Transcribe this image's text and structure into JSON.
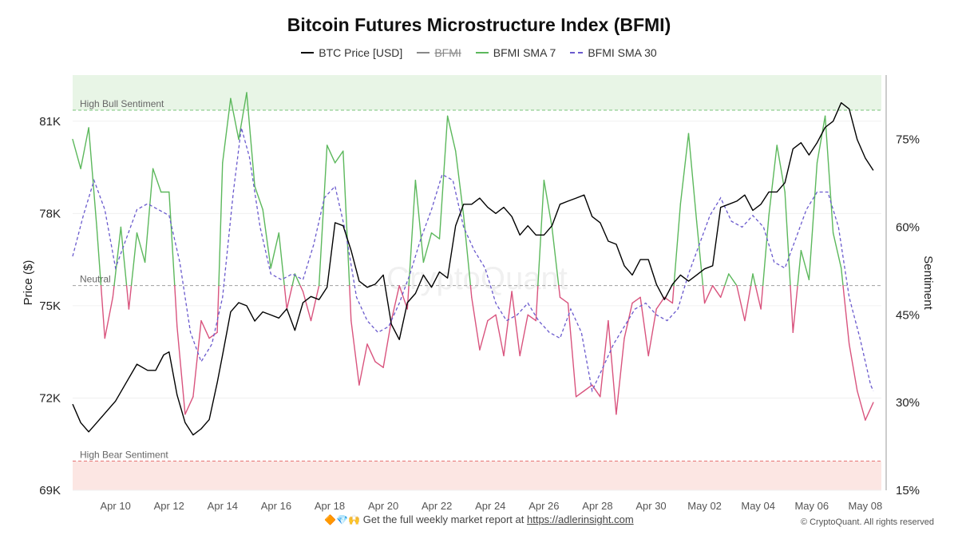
{
  "page": {
    "footer_emojis": "🔶💎🙌",
    "footer_text": "Get the full weekly market report at",
    "footer_link": "https://adlerinsight.com",
    "copyright": "© CryptoQuant. All rights reserved",
    "watermark": "CryptoQuant"
  },
  "chart_data": {
    "type": "line",
    "title": "Bitcoin Futures Microstructure Index (BFMI)",
    "ylabel_left": "Price ($)",
    "ylabel_right": "Sentiment",
    "legend": [
      {
        "name": "BTC Price [USD]",
        "style": "solid",
        "color": "#000000",
        "visible": true
      },
      {
        "name": "BFMI",
        "style": "solid",
        "color": "#888888",
        "visible": false
      },
      {
        "name": "BFMI SMA 7",
        "style": "solid",
        "color": "#5cb85c",
        "visible": true
      },
      {
        "name": "BFMI SMA 30",
        "style": "dashed",
        "color": "#6a5acd",
        "visible": true
      }
    ],
    "x_ticks": [
      "Apr 10",
      "Apr 12",
      "Apr 14",
      "Apr 16",
      "Apr 18",
      "Apr 20",
      "Apr 22",
      "Apr 24",
      "Apr 26",
      "Apr 28",
      "Apr 30",
      "May 02",
      "May 04",
      "May 06",
      "May 08"
    ],
    "x_range_days": [
      8.4,
      38.6
    ],
    "y_left_ticks": [
      "69K",
      "72K",
      "75K",
      "78K",
      "81K"
    ],
    "y_left_range": [
      69000,
      82500
    ],
    "y_right_ticks": [
      "15%",
      "30%",
      "45%",
      "60%",
      "75%"
    ],
    "y_right_range": [
      15,
      86
    ],
    "thresholds": [
      {
        "label": "High Bull Sentiment",
        "value": 80,
        "color": "#5cb85c"
      },
      {
        "label": "Neutral",
        "value": 50,
        "color": "#888888"
      },
      {
        "label": "High Bear Sentiment",
        "value": 20,
        "color": "#e05050"
      }
    ],
    "sma7_colors": {
      "above_neutral": "#5cb85c",
      "below_neutral": "#d9547e"
    },
    "series": [
      {
        "name": "BTC Price [USD]",
        "x": [
          8.4,
          8.7,
          9.0,
          9.3,
          9.6,
          10.0,
          10.4,
          10.8,
          11.2,
          11.5,
          11.8,
          12.0,
          12.3,
          12.6,
          12.9,
          13.2,
          13.5,
          13.8,
          14.0,
          14.3,
          14.6,
          14.9,
          15.2,
          15.5,
          15.8,
          16.1,
          16.4,
          16.7,
          17.0,
          17.3,
          17.6,
          17.9,
          18.2,
          18.5,
          18.8,
          19.1,
          19.4,
          19.7,
          20.0,
          20.3,
          20.6,
          20.9,
          21.2,
          21.5,
          21.8,
          22.1,
          22.4,
          22.7,
          23.0,
          23.3,
          23.6,
          23.9,
          24.2,
          24.5,
          24.8,
          25.1,
          25.4,
          25.7,
          26.0,
          26.3,
          26.6,
          26.9,
          27.2,
          27.5,
          27.8,
          28.1,
          28.4,
          28.7,
          29.0,
          29.3,
          29.6,
          29.9,
          30.2,
          30.5,
          30.8,
          31.1,
          31.4,
          31.7,
          32.0,
          32.3,
          32.6,
          32.9,
          33.2,
          33.5,
          33.8,
          34.1,
          34.4,
          34.7,
          35.0,
          35.3,
          35.6,
          35.9,
          36.2,
          36.5,
          36.8,
          37.1,
          37.4,
          37.7,
          38.0,
          38.3
        ],
        "values": [
          71800,
          71200,
          70900,
          71200,
          71500,
          71900,
          72500,
          73100,
          72900,
          72900,
          73400,
          73500,
          72100,
          71200,
          70800,
          71000,
          71300,
          72500,
          73400,
          74800,
          75100,
          75000,
          74500,
          74800,
          74700,
          74600,
          74900,
          74200,
          75100,
          75300,
          75200,
          75600,
          77700,
          77600,
          76800,
          75800,
          75600,
          75700,
          76000,
          74400,
          73900,
          75100,
          75400,
          76000,
          75600,
          76100,
          75900,
          77600,
          78300,
          78300,
          78500,
          78200,
          78000,
          78200,
          77900,
          77300,
          77600,
          77300,
          77300,
          77600,
          78300,
          78400,
          78500,
          78600,
          77900,
          77700,
          77100,
          77000,
          76300,
          76000,
          76500,
          76500,
          75700,
          75200,
          75700,
          76000,
          75800,
          76000,
          76200,
          76300,
          78200,
          78300,
          78400,
          78600,
          78100,
          78300,
          78700,
          78700,
          79000,
          80100,
          80300,
          79900,
          80300,
          80800,
          81000,
          81600,
          81400,
          80400,
          79800,
          79400
        ]
      },
      {
        "name": "BFMI SMA 7",
        "x": [
          8.4,
          8.7,
          9.0,
          9.3,
          9.6,
          9.9,
          10.2,
          10.5,
          10.8,
          11.1,
          11.4,
          11.7,
          12.0,
          12.3,
          12.6,
          12.9,
          13.2,
          13.5,
          13.8,
          14.0,
          14.3,
          14.6,
          14.9,
          15.2,
          15.5,
          15.8,
          16.1,
          16.4,
          16.7,
          17.0,
          17.3,
          17.6,
          17.9,
          18.2,
          18.5,
          18.8,
          19.1,
          19.4,
          19.7,
          20.0,
          20.3,
          20.6,
          20.9,
          21.2,
          21.5,
          21.8,
          22.1,
          22.4,
          22.7,
          23.0,
          23.3,
          23.6,
          23.9,
          24.2,
          24.5,
          24.8,
          25.1,
          25.4,
          25.7,
          26.0,
          26.3,
          26.6,
          26.9,
          27.2,
          27.5,
          27.8,
          28.1,
          28.4,
          28.7,
          29.0,
          29.3,
          29.6,
          29.9,
          30.2,
          30.5,
          30.8,
          31.1,
          31.4,
          31.7,
          32.0,
          32.3,
          32.6,
          32.9,
          33.2,
          33.5,
          33.8,
          34.1,
          34.4,
          34.7,
          35.0,
          35.3,
          35.6,
          35.9,
          36.2,
          36.5,
          36.8,
          37.1,
          37.4,
          37.7,
          38.0,
          38.3
        ],
        "values": [
          75,
          70,
          77,
          60,
          41,
          48,
          60,
          46,
          59,
          54,
          70,
          66,
          66,
          43,
          28,
          31,
          44,
          41,
          42,
          71,
          82,
          75,
          83,
          67,
          63,
          53,
          59,
          46,
          52,
          49,
          44,
          50,
          74,
          71,
          73,
          44,
          33,
          40,
          37,
          36,
          44,
          50,
          46,
          68,
          54,
          59,
          58,
          79,
          73,
          62,
          48,
          39,
          44,
          45,
          38,
          49,
          38,
          45,
          44,
          68,
          60,
          48,
          47,
          31,
          32,
          33,
          31,
          44,
          28,
          41,
          47,
          48,
          38,
          46,
          48,
          47,
          64,
          76,
          61,
          47,
          50,
          48,
          52,
          50,
          44,
          52,
          46,
          62,
          74,
          66,
          42,
          56,
          51,
          71,
          79,
          59,
          53,
          40,
          32,
          27,
          30
        ]
      },
      {
        "name": "BFMI SMA 30",
        "x": [
          8.4,
          8.8,
          9.2,
          9.6,
          10.0,
          10.4,
          10.8,
          11.2,
          11.6,
          12.0,
          12.4,
          12.8,
          13.2,
          13.6,
          14.0,
          14.4,
          14.7,
          15.0,
          15.4,
          15.8,
          16.2,
          16.6,
          17.0,
          17.4,
          17.8,
          18.2,
          18.6,
          19.0,
          19.4,
          19.8,
          20.2,
          20.6,
          21.0,
          21.4,
          21.8,
          22.2,
          22.6,
          23.0,
          23.4,
          23.8,
          24.2,
          24.6,
          25.0,
          25.4,
          25.8,
          26.2,
          26.6,
          27.0,
          27.4,
          27.8,
          28.2,
          28.6,
          29.0,
          29.4,
          29.8,
          30.2,
          30.6,
          31.0,
          31.4,
          31.8,
          32.2,
          32.6,
          33.0,
          33.4,
          33.8,
          34.2,
          34.6,
          35.0,
          35.4,
          35.8,
          36.2,
          36.6,
          37.0,
          37.4,
          37.8,
          38.2,
          38.3
        ],
        "values": [
          55,
          62,
          68,
          63,
          53,
          58,
          63,
          64,
          63,
          62,
          54,
          42,
          37,
          40,
          48,
          66,
          77,
          72,
          60,
          52,
          51,
          52,
          51,
          57,
          65,
          67,
          59,
          48,
          44,
          42,
          43,
          47,
          52,
          58,
          63,
          69,
          68,
          60,
          56,
          53,
          47,
          44,
          45,
          47,
          44,
          42,
          41,
          46,
          42,
          32,
          36,
          40,
          43,
          46,
          47,
          45,
          44,
          46,
          52,
          57,
          62,
          65,
          61,
          60,
          62,
          60,
          54,
          53,
          58,
          63,
          66,
          66,
          60,
          48,
          41,
          33,
          32
        ]
      }
    ]
  }
}
